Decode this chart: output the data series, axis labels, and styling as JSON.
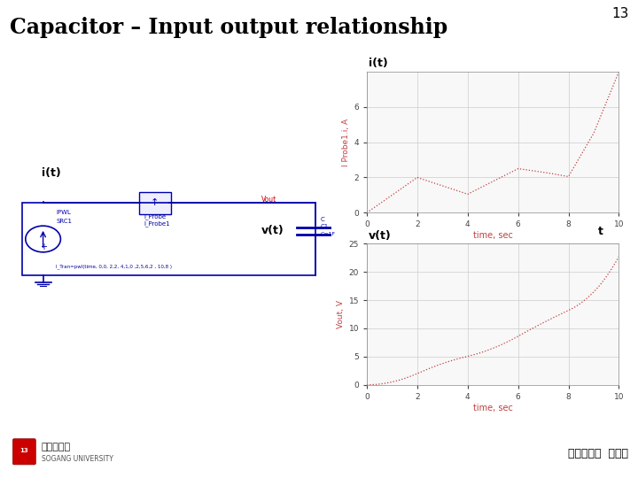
{
  "title": "Capacitor – Input output relationship",
  "page_num": "13",
  "bg_color": "#ffffff",
  "title_color": "#000000",
  "title_fontsize": 17,
  "plot_line_color": "#c04040",
  "plot_bg_color": "#f8f8f8",
  "grid_color": "#cccccc",
  "axis_label_color": "#c04040",
  "tick_label_color": "#444444",
  "top_label": "i(t)",
  "bottom_label": "v(t)",
  "top_ylabel": "I Probe1.i, A",
  "bottom_ylabel": "Vout, V",
  "xlabel": "time, sec",
  "t_label": "t",
  "i_t_x": [
    0,
    2,
    4,
    6,
    7,
    8,
    9,
    10
  ],
  "i_t_y": [
    0,
    2.0,
    1.05,
    2.5,
    2.3,
    2.05,
    4.5,
    8.0
  ],
  "i_ylim": [
    0,
    8
  ],
  "i_yticks": [
    0,
    2,
    4,
    6
  ],
  "i_xlim": [
    0,
    10
  ],
  "i_xticks": [
    0,
    2,
    4,
    6,
    8,
    10
  ],
  "v_ylim": [
    0,
    25
  ],
  "v_yticks": [
    0,
    5,
    10,
    15,
    20,
    25
  ],
  "v_xlim": [
    0,
    10
  ],
  "v_xticks": [
    0,
    2,
    4,
    6,
    8,
    10
  ],
  "circuit_label_i": "i(t)",
  "circuit_label_v": "v(t)",
  "footer_text": "전자공학과  이행선",
  "blue_color": "#0000aa",
  "red_color": "#cc0000"
}
